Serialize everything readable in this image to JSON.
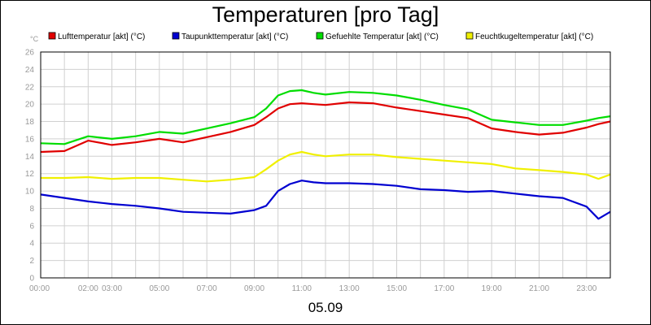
{
  "chart_data": {
    "type": "line",
    "title": "Temperaturen [pro Tag]",
    "ylabel": "°C",
    "xlabel": "05.09",
    "ylim": [
      0,
      26
    ],
    "xlim": [
      0,
      24
    ],
    "yticks": [
      0,
      2,
      4,
      6,
      8,
      10,
      12,
      14,
      16,
      18,
      20,
      22,
      24,
      26
    ],
    "xticks": [
      {
        "value": 0,
        "label": "00:00"
      },
      {
        "value": 2,
        "label": "02:00"
      },
      {
        "value": 3,
        "label": "03:00"
      },
      {
        "value": 5,
        "label": "05:00"
      },
      {
        "value": 7,
        "label": "07:00"
      },
      {
        "value": 9,
        "label": "09:00"
      },
      {
        "value": 11,
        "label": "11:00"
      },
      {
        "value": 13,
        "label": "13:00"
      },
      {
        "value": 15,
        "label": "15:00"
      },
      {
        "value": 17,
        "label": "17:00"
      },
      {
        "value": 19,
        "label": "19:00"
      },
      {
        "value": 21,
        "label": "21:00"
      },
      {
        "value": 23,
        "label": "23:00"
      }
    ],
    "grid": true,
    "legend_position": "top",
    "x": [
      0,
      1,
      2,
      3,
      4,
      5,
      6,
      7,
      8,
      9,
      9.5,
      10,
      10.5,
      11,
      11.5,
      12,
      13,
      14,
      15,
      16,
      17,
      18,
      19,
      20,
      21,
      22,
      23,
      23.5,
      24
    ],
    "series": [
      {
        "name": "Lufttemperatur [akt] (°C)",
        "color": "#e00000",
        "values": [
          14.5,
          14.6,
          15.8,
          15.3,
          15.6,
          16.0,
          15.6,
          16.2,
          16.8,
          17.6,
          18.5,
          19.5,
          20.0,
          20.1,
          20.0,
          19.9,
          20.2,
          20.1,
          19.6,
          19.2,
          18.8,
          18.4,
          17.2,
          16.8,
          16.5,
          16.7,
          17.3,
          17.7,
          18.0
        ]
      },
      {
        "name": "Taupunkttemperatur [akt] (°C)",
        "color": "#0000d0",
        "values": [
          9.6,
          9.2,
          8.8,
          8.5,
          8.3,
          8.0,
          7.6,
          7.5,
          7.4,
          7.8,
          8.3,
          10.0,
          10.8,
          11.2,
          11.0,
          10.9,
          10.9,
          10.8,
          10.6,
          10.2,
          10.1,
          9.9,
          10.0,
          9.7,
          9.4,
          9.2,
          8.2,
          6.8,
          7.6
        ]
      },
      {
        "name": "Gefuehlte Temperatur [akt] (°C)",
        "color": "#00dd00",
        "values": [
          15.5,
          15.4,
          16.3,
          16.0,
          16.3,
          16.8,
          16.6,
          17.2,
          17.8,
          18.5,
          19.5,
          21.0,
          21.5,
          21.6,
          21.3,
          21.1,
          21.4,
          21.3,
          21.0,
          20.5,
          19.9,
          19.4,
          18.2,
          17.9,
          17.6,
          17.6,
          18.1,
          18.4,
          18.6
        ]
      },
      {
        "name": "Feuchtkugeltemperatur [akt] (°C)",
        "color": "#f0f000",
        "values": [
          11.5,
          11.5,
          11.6,
          11.4,
          11.5,
          11.5,
          11.3,
          11.1,
          11.3,
          11.6,
          12.5,
          13.5,
          14.2,
          14.5,
          14.2,
          14.0,
          14.2,
          14.2,
          13.9,
          13.7,
          13.5,
          13.3,
          13.1,
          12.6,
          12.4,
          12.2,
          11.9,
          11.4,
          11.9
        ]
      }
    ]
  }
}
